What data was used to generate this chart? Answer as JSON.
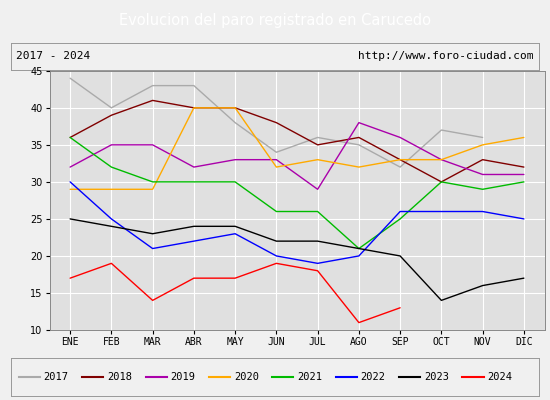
{
  "title": "Evolucion del paro registrado en Carucedo",
  "subtitle_left": "2017 - 2024",
  "subtitle_right": "http://www.foro-ciudad.com",
  "months": [
    "ENE",
    "FEB",
    "MAR",
    "ABR",
    "MAY",
    "JUN",
    "JUL",
    "AGO",
    "SEP",
    "OCT",
    "NOV",
    "DIC"
  ],
  "ylim": [
    10,
    45
  ],
  "yticks": [
    10,
    15,
    20,
    25,
    30,
    35,
    40,
    45
  ],
  "series": {
    "2017": {
      "data": [
        44,
        40,
        43,
        43,
        38,
        34,
        36,
        35,
        32,
        37,
        36,
        null
      ],
      "color": "#aaaaaa"
    },
    "2018": {
      "data": [
        36,
        39,
        41,
        40,
        40,
        38,
        35,
        36,
        33,
        30,
        33,
        32
      ],
      "color": "#800000"
    },
    "2019": {
      "data": [
        32,
        35,
        35,
        32,
        33,
        33,
        29,
        38,
        36,
        33,
        31,
        31
      ],
      "color": "#aa00aa"
    },
    "2020": {
      "data": [
        29,
        29,
        29,
        40,
        40,
        32,
        33,
        32,
        33,
        33,
        35,
        36
      ],
      "color": "#ffaa00"
    },
    "2021": {
      "data": [
        36,
        32,
        30,
        30,
        30,
        26,
        26,
        21,
        25,
        30,
        29,
        30
      ],
      "color": "#00bb00"
    },
    "2022": {
      "data": [
        30,
        25,
        21,
        22,
        23,
        20,
        19,
        20,
        26,
        26,
        26,
        25
      ],
      "color": "#0000ff"
    },
    "2023": {
      "data": [
        25,
        24,
        23,
        24,
        24,
        22,
        22,
        21,
        20,
        14,
        16,
        17
      ],
      "color": "#000000"
    },
    "2024": {
      "data": [
        17,
        19,
        14,
        17,
        17,
        19,
        18,
        11,
        13,
        null,
        null,
        null
      ],
      "color": "#ff0000"
    }
  },
  "title_bg_color": "#4472c4",
  "title_text_color": "#ffffff",
  "subtitle_bg_color": "#f0f0f0",
  "plot_bg_color": "#e0e0e0",
  "grid_color": "#ffffff",
  "legend_bg_color": "#f0f0f0",
  "title_fontsize": 10.5,
  "subtitle_fontsize": 8,
  "tick_fontsize": 7,
  "legend_fontsize": 7.5
}
